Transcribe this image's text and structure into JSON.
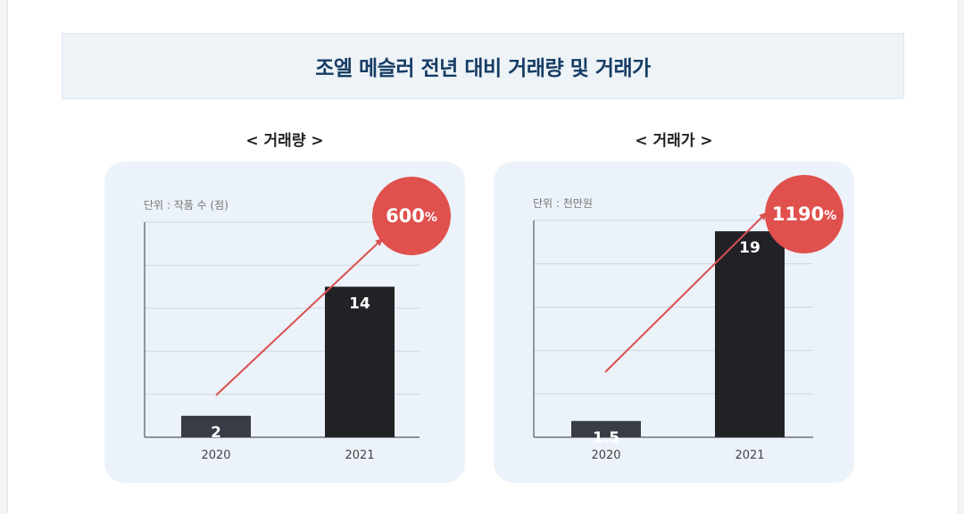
{
  "page": {
    "title": "조엘 메슬러 전년 대비 거래량 및 거래가"
  },
  "colors": {
    "bar_2020": "#383c44",
    "bar_2021": "#202226",
    "arrow": "#d9504e",
    "badge": "#e0504d",
    "grid": "#cfd6df",
    "axis": "#555a62"
  },
  "chart_data": [
    {
      "type": "bar",
      "title": "< 거래량 >",
      "unit_label": "단위 : 작품 수 (점)",
      "categories": [
        "2020",
        "2021"
      ],
      "values": [
        2,
        14
      ],
      "value_labels": [
        "2",
        "14"
      ],
      "ylim": [
        0,
        20
      ],
      "grid": true,
      "growth_value": "600",
      "growth_unit": "%"
    },
    {
      "type": "bar",
      "title": "< 거래가 >",
      "unit_label": "단위 : 천만원",
      "categories": [
        "2020",
        "2021"
      ],
      "values": [
        1.5,
        19
      ],
      "value_labels": [
        "1.5",
        "19"
      ],
      "ylim": [
        0,
        20
      ],
      "grid": true,
      "growth_value": "1190",
      "growth_unit": "%"
    }
  ]
}
